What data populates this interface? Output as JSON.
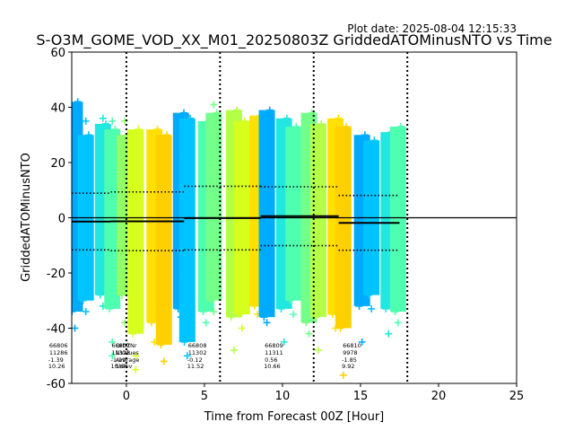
{
  "chart_data": {
    "type": "scatter",
    "plot_date": "Plot date: 2025-08-04 12:15:33",
    "title": "S-O3M_GOME_VOD_XX_M01_20250803Z GriddedATOMinusNTO vs Time",
    "xlabel": "Time from Forecast 00Z [Hour]",
    "ylabel": "GriddedATOMinusNTO",
    "xlim": [
      -3.5,
      25
    ],
    "ylim": [
      -60,
      60
    ],
    "xticks": [
      0,
      5,
      10,
      15,
      20,
      25
    ],
    "yticks": [
      -60,
      -40,
      -20,
      0,
      20,
      40,
      60
    ],
    "grid": false,
    "zero_line": 0,
    "forecast_boundaries": [
      0,
      6,
      12,
      18
    ],
    "strips": [
      {
        "x": -3.3,
        "lo": -34,
        "hi": 42,
        "outliers": [
          -40,
          38
        ],
        "color": "#00aaff"
      },
      {
        "x": -2.6,
        "lo": -30,
        "hi": 30,
        "outliers": [
          -34,
          35
        ],
        "color": "#00c4ff"
      },
      {
        "x": -1.5,
        "lo": -28,
        "hi": 34,
        "outliers": [
          -32,
          36
        ],
        "color": "#22e6e0"
      },
      {
        "x": -0.9,
        "lo": -33,
        "hi": 32,
        "outliers": [
          -45,
          -50,
          35
        ],
        "color": "#4fffb0"
      },
      {
        "x": -0.1,
        "lo": -28,
        "hi": 30,
        "outliers": [
          -38,
          35
        ],
        "color": "#90ff6a"
      },
      {
        "x": 0.6,
        "lo": -42,
        "hi": 32,
        "outliers": [
          -50,
          -55
        ],
        "color": "#d6ff1e"
      },
      {
        "x": 1.8,
        "lo": -38,
        "hi": 32,
        "outliers": [
          -45
        ],
        "color": "#ffe000"
      },
      {
        "x": 2.4,
        "lo": -46,
        "hi": 30,
        "outliers": [
          -52
        ],
        "color": "#ffd000"
      },
      {
        "x": 3.5,
        "lo": -33,
        "hi": 38,
        "outliers": [
          -36
        ],
        "color": "#00aaff"
      },
      {
        "x": 3.9,
        "lo": -45,
        "hi": 36,
        "outliers": [
          -50
        ],
        "color": "#00c4ff"
      },
      {
        "x": 5.1,
        "lo": -34,
        "hi": 35,
        "outliers": [
          -38
        ],
        "color": "#4fffb0"
      },
      {
        "x": 5.6,
        "lo": -30,
        "hi": 38,
        "outliers": [
          -34,
          41
        ],
        "color": "#74ff8a"
      },
      {
        "x": 6.9,
        "lo": -36,
        "hi": 39,
        "outliers": [
          -48
        ],
        "color": "#b4ff48"
      },
      {
        "x": 7.4,
        "lo": -35,
        "hi": 35,
        "outliers": [
          -40
        ],
        "color": "#d6ff1e"
      },
      {
        "x": 8.4,
        "lo": -32,
        "hi": 37,
        "outliers": [
          -35
        ],
        "color": "#ffe000"
      },
      {
        "x": 9.0,
        "lo": -36,
        "hi": 39,
        "outliers": [
          -38
        ],
        "color": "#00aaff"
      },
      {
        "x": 10.1,
        "lo": -33,
        "hi": 36,
        "outliers": [
          -45
        ],
        "color": "#22e6e0"
      },
      {
        "x": 10.7,
        "lo": -30,
        "hi": 33,
        "outliers": [
          -35
        ],
        "color": "#4fffb0"
      },
      {
        "x": 11.7,
        "lo": -38,
        "hi": 38,
        "outliers": [
          -42
        ],
        "color": "#74ff8a"
      },
      {
        "x": 12.3,
        "lo": -36,
        "hi": 34,
        "outliers": [
          -48
        ],
        "color": "#b4ff48"
      },
      {
        "x": 13.4,
        "lo": -35,
        "hi": 36,
        "outliers": [
          -40
        ],
        "color": "#ffe000"
      },
      {
        "x": 13.9,
        "lo": -40,
        "hi": 33,
        "outliers": [
          -57
        ],
        "color": "#ffd000"
      },
      {
        "x": 15.1,
        "lo": -32,
        "hi": 30,
        "outliers": [
          -45
        ],
        "color": "#00aaff"
      },
      {
        "x": 15.7,
        "lo": -28,
        "hi": 28,
        "outliers": [
          -33
        ],
        "color": "#00c4ff"
      },
      {
        "x": 16.8,
        "lo": -33,
        "hi": 31,
        "outliers": [
          -42
        ],
        "color": "#22e6e0"
      },
      {
        "x": 17.4,
        "lo": -34,
        "hi": 33,
        "outliers": [
          -38
        ],
        "color": "#4fffb0"
      }
    ],
    "mean_series": [
      {
        "x0": -3.5,
        "x1": -1.0,
        "y": -1.39
      },
      {
        "x0": -1.0,
        "x1": 3.7,
        "y": -1.29
      },
      {
        "x0": 3.7,
        "x1": 8.6,
        "y": -0.12
      },
      {
        "x0": 8.6,
        "x1": 13.6,
        "y": 0.56
      },
      {
        "x0": 13.6,
        "x1": 17.5,
        "y": -1.85
      }
    ],
    "stdev_upper": [
      {
        "x0": -3.5,
        "x1": -1.0,
        "y": 8.87
      },
      {
        "x0": -1.0,
        "x1": 3.7,
        "y": 9.35
      },
      {
        "x0": 3.7,
        "x1": 8.6,
        "y": 11.4
      },
      {
        "x0": 8.6,
        "x1": 13.6,
        "y": 11.22
      },
      {
        "x0": 13.6,
        "x1": 17.5,
        "y": 8.07
      }
    ],
    "stdev_lower": [
      {
        "x0": -3.5,
        "x1": -1.0,
        "y": -11.65
      },
      {
        "x0": -1.0,
        "x1": 3.7,
        "y": -11.93
      },
      {
        "x0": 3.7,
        "x1": 8.6,
        "y": -11.64
      },
      {
        "x0": 8.6,
        "x1": 13.6,
        "y": -10.1
      },
      {
        "x0": 13.6,
        "x1": 17.5,
        "y": -11.77
      }
    ],
    "stats_header": [
      "OrbitNr",
      "NValues",
      "Average",
      "Stdev"
    ],
    "stats_header_x": -0.7,
    "stats": [
      {
        "x": -5.0,
        "orbit": "66806",
        "nvalues": "11286",
        "average": "-1.39",
        "stdev": "10.26"
      },
      {
        "x": -1.0,
        "orbit": "66807",
        "nvalues": "11328",
        "average": "-1.29",
        "stdev": "10.64"
      },
      {
        "x": 3.9,
        "orbit": "66808",
        "nvalues": "11302",
        "average": "-0.12",
        "stdev": "11.52"
      },
      {
        "x": 8.8,
        "orbit": "66809",
        "nvalues": "11311",
        "average": "0.56",
        "stdev": "10.66"
      },
      {
        "x": 13.8,
        "orbit": "66810",
        "nvalues": "9978",
        "average": "-1.85",
        "stdev": "9.92"
      }
    ]
  }
}
